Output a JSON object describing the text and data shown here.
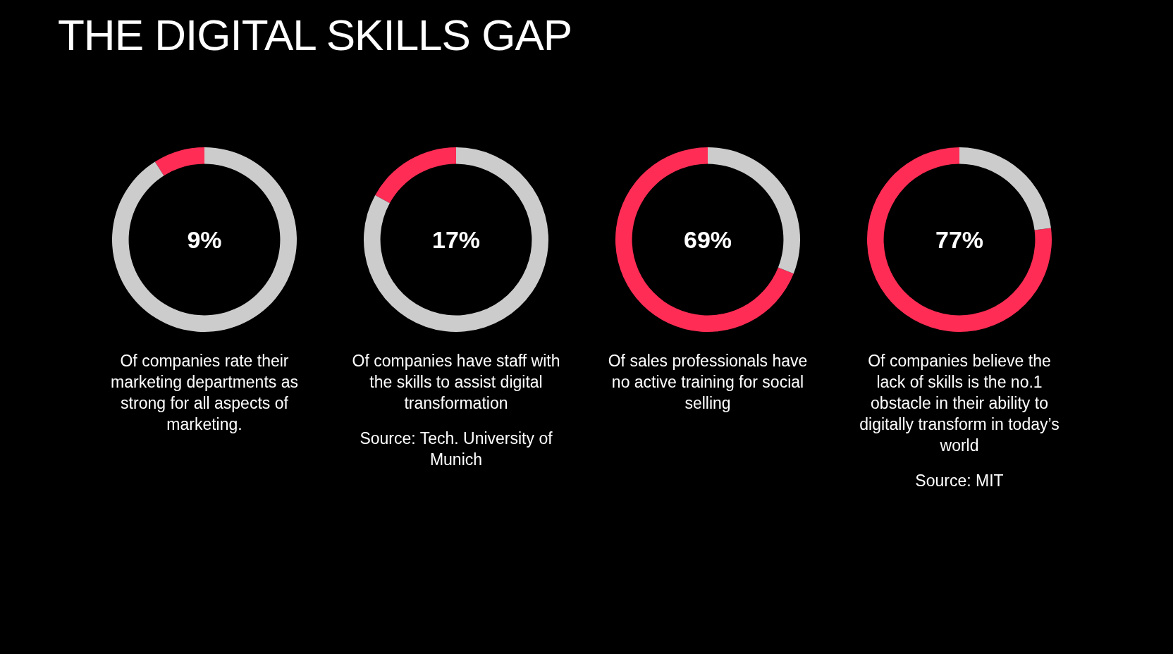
{
  "chart_data": [
    {
      "type": "donut",
      "title": "THE DIGITAL SKILLS GAP",
      "categories": [
        null,
        null
      ],
      "values": [
        9,
        91
      ],
      "colors": [
        "#ff2d55",
        "#cccccc"
      ],
      "annotations": [
        "9%",
        "Of companies rate their marketing departments as strong for all aspects of marketing."
      ]
    },
    {
      "type": "donut",
      "categories": [
        null,
        null
      ],
      "values": [
        17,
        83
      ],
      "colors": [
        "#ff2d55",
        "#cccccc"
      ],
      "annotations": [
        "17%",
        "Of companies have staff with the skills to assist digital transformation",
        "Source: Tech. University of Munich"
      ]
    },
    {
      "type": "donut",
      "categories": [
        null,
        null
      ],
      "values": [
        69,
        31
      ],
      "colors": [
        "#ff2d55",
        "#cccccc"
      ],
      "annotations": [
        "69%",
        "Of sales professionals have no active training for social selling"
      ]
    },
    {
      "type": "donut",
      "categories": [
        null,
        null
      ],
      "values": [
        77,
        23
      ],
      "colors": [
        "#ff2d55",
        "#cccccc"
      ],
      "annotations": [
        "77%",
        "Of companies believe the lack of skills is the no.1 obstacle in their ability to digitally transform in today’s world",
        "Source: MIT"
      ]
    }
  ]
}
